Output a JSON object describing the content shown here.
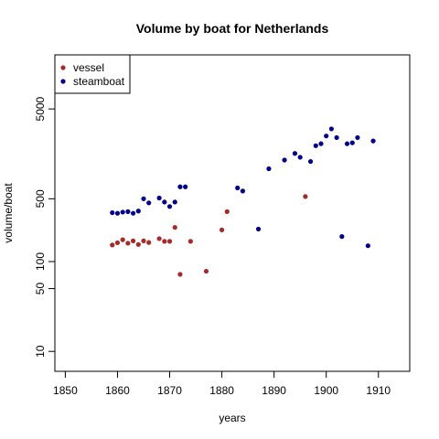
{
  "chart_data": {
    "type": "scatter",
    "title": "Volume by boat for Netherlands",
    "xlabel": "years",
    "ylabel": "volume/boat",
    "xlim": [
      1848,
      1916
    ],
    "ylim": [
      6,
      20000
    ],
    "y_scale": "log",
    "x_ticks": [
      1850,
      1860,
      1870,
      1880,
      1890,
      1900,
      1910
    ],
    "y_ticks": [
      10,
      50,
      100,
      500,
      5000
    ],
    "grid": false,
    "legend_position": "top-left",
    "series": [
      {
        "name": "vessel",
        "color": "#a52a2a",
        "points": [
          [
            1859,
            153
          ],
          [
            1860,
            162
          ],
          [
            1861,
            175
          ],
          [
            1862,
            160
          ],
          [
            1863,
            170
          ],
          [
            1864,
            155
          ],
          [
            1865,
            170
          ],
          [
            1866,
            163
          ],
          [
            1868,
            180
          ],
          [
            1869,
            168
          ],
          [
            1870,
            168
          ],
          [
            1871,
            240
          ],
          [
            1872,
            72
          ],
          [
            1874,
            168
          ],
          [
            1877,
            78
          ],
          [
            1880,
            225
          ],
          [
            1881,
            360
          ],
          [
            1896,
            530
          ]
        ]
      },
      {
        "name": "steamboat",
        "color": "#00008b",
        "points": [
          [
            1859,
            350
          ],
          [
            1860,
            345
          ],
          [
            1861,
            355
          ],
          [
            1862,
            360
          ],
          [
            1863,
            345
          ],
          [
            1864,
            365
          ],
          [
            1865,
            500
          ],
          [
            1866,
            450
          ],
          [
            1868,
            510
          ],
          [
            1869,
            460
          ],
          [
            1870,
            410
          ],
          [
            1871,
            460
          ],
          [
            1872,
            680
          ],
          [
            1873,
            680
          ],
          [
            1883,
            660
          ],
          [
            1884,
            610
          ],
          [
            1887,
            230
          ],
          [
            1889,
            1080
          ],
          [
            1892,
            1350
          ],
          [
            1894,
            1600
          ],
          [
            1895,
            1450
          ],
          [
            1897,
            1300
          ],
          [
            1898,
            1950
          ],
          [
            1899,
            2050
          ],
          [
            1900,
            2500
          ],
          [
            1901,
            3000
          ],
          [
            1902,
            2400
          ],
          [
            1903,
            190
          ],
          [
            1904,
            2050
          ],
          [
            1905,
            2100
          ],
          [
            1906,
            2400
          ],
          [
            1908,
            150
          ],
          [
            1909,
            2200
          ]
        ]
      }
    ]
  }
}
